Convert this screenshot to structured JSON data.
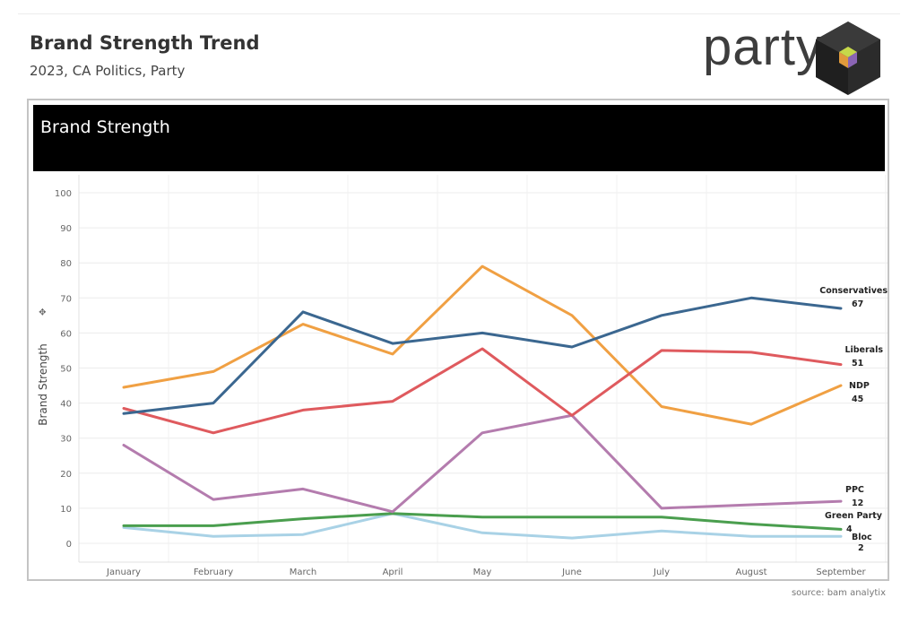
{
  "header": {
    "title": "Brand Strength Trend",
    "subtitle": "2023, CA Politics, Party"
  },
  "logo": {
    "text": "party"
  },
  "panel": {
    "title": "Brand Strength"
  },
  "source": "source: bam analytix",
  "chart_data": {
    "type": "line",
    "ylabel": "Brand Strength",
    "xlabel": "",
    "ylim": [
      0,
      100
    ],
    "yticks": [
      0,
      10,
      20,
      30,
      40,
      50,
      60,
      70,
      80,
      90,
      100
    ],
    "grid": true,
    "categories": [
      "January",
      "February",
      "March",
      "April",
      "May",
      "June",
      "July",
      "August",
      "September"
    ],
    "series": [
      {
        "name": "Conservatives",
        "color": "#3b6790",
        "values": [
          37,
          40,
          66,
          57,
          60,
          56,
          65,
          70,
          67
        ],
        "end_label": "67"
      },
      {
        "name": "Liberals",
        "color": "#df5a5e",
        "values": [
          38.5,
          31.5,
          38,
          40.5,
          55.5,
          36.5,
          55,
          54.5,
          51
        ],
        "end_label": "51"
      },
      {
        "name": "NDP",
        "color": "#f0a043",
        "values": [
          44.5,
          49,
          62.5,
          54,
          79,
          65,
          39,
          34,
          45
        ],
        "end_label": "45"
      },
      {
        "name": "PPC",
        "color": "#b47cae",
        "values": [
          28,
          12.5,
          15.5,
          9,
          31.5,
          36.5,
          10,
          11,
          12
        ],
        "end_label": "12"
      },
      {
        "name": "Green Party",
        "color": "#4a9e4e",
        "values": [
          5,
          5,
          7,
          8.5,
          7.5,
          7.5,
          7.5,
          5.5,
          4
        ],
        "end_label": "4"
      },
      {
        "name": "Bloc",
        "color": "#a9d2e6",
        "values": [
          4.5,
          2,
          2.5,
          8.5,
          3,
          1.5,
          3.5,
          2,
          2
        ],
        "end_label": "2"
      }
    ]
  }
}
